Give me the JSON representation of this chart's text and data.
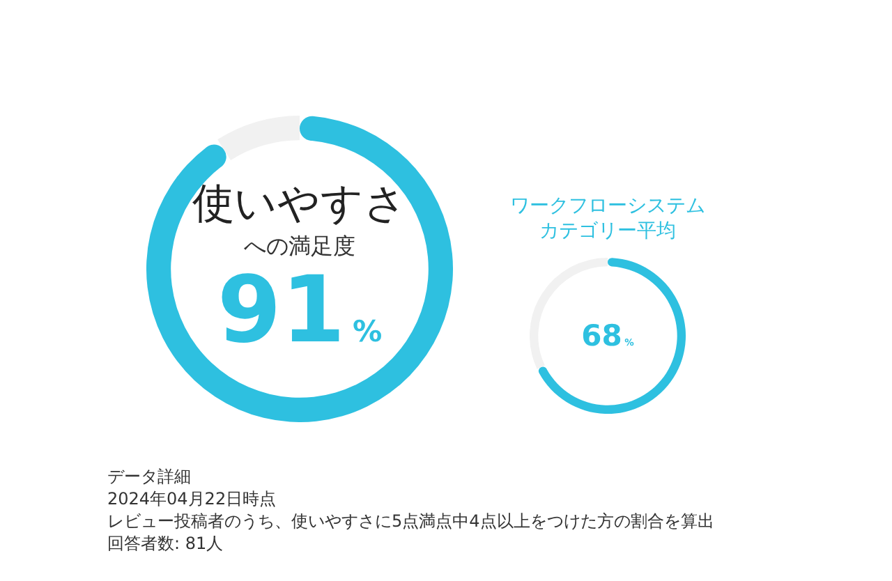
{
  "chart_data": [
    {
      "type": "donut",
      "title": "使いやすさ",
      "subtitle": "への満足度",
      "categories": [
        null,
        null
      ],
      "values": [
        91,
        9
      ],
      "colors": [
        "#2ec0e0",
        "#f1f1f1"
      ],
      "value_labels": [
        "91%",
        null
      ],
      "annotations": [
        "データ詳細",
        "2024年04月22日時点",
        "レビュー投稿者のうち、使いやすさに5点満点中4点以上をつけた方の割合を算出",
        "回答者数: 81人"
      ]
    },
    {
      "type": "donut",
      "title": "ワークフローシステムカテゴリー平均",
      "categories": [
        null,
        null
      ],
      "values": [
        68,
        32
      ],
      "colors": [
        "#2ec0e0",
        "#f1f1f1"
      ],
      "value_labels": [
        "68%",
        null
      ]
    }
  ]
}
